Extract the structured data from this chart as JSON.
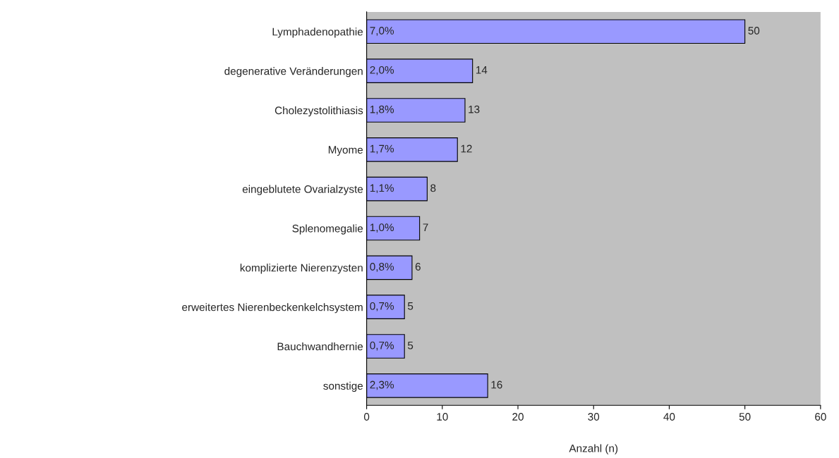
{
  "chart_data": {
    "type": "bar",
    "orientation": "horizontal",
    "categories": [
      "Lymphadenopathie",
      "degenerative Veränderungen",
      "Cholezystolithiasis",
      "Myome",
      "eingeblutete Ovarialzyste",
      "Splenomegalie",
      "komplizierte Nierenzysten",
      "erweitertes Nierenbeckenkelchsystem",
      "Bauchwandhernie",
      "sonstige"
    ],
    "values": [
      50,
      14,
      13,
      12,
      8,
      7,
      6,
      5,
      5,
      16
    ],
    "annotations": [
      "7,0%",
      "2,0%",
      "1,8%",
      "1,7%",
      "1,1%",
      "1,0%",
      "0,8%",
      "0,7%",
      "0,7%",
      "2,3%"
    ],
    "color": "#9999ff",
    "data_labels": true,
    "xlabel": "Anzahl (n)",
    "xlim": [
      0,
      60
    ],
    "xticks": [
      0,
      10,
      20,
      30,
      40,
      50,
      60
    ],
    "grid": false,
    "legend": false
  }
}
